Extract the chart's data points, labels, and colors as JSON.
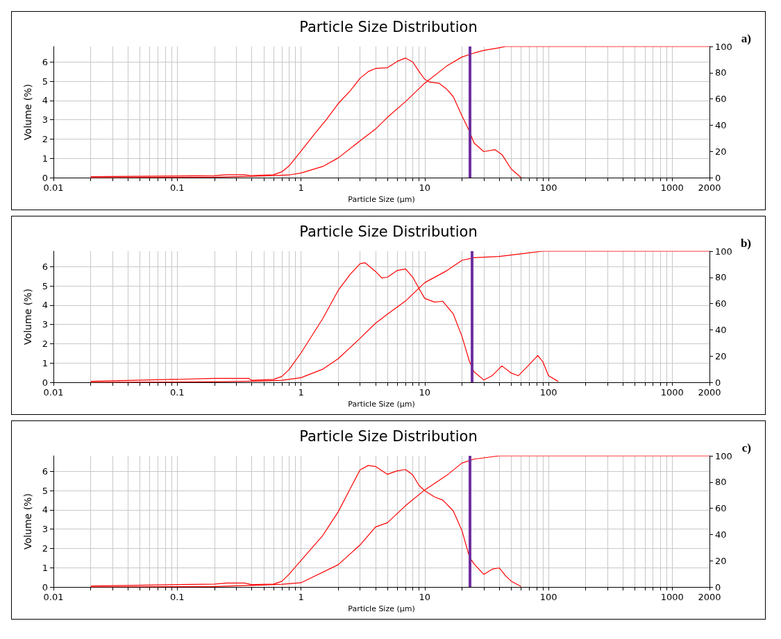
{
  "chart_data": [
    {
      "type": "line",
      "title": "Particle Size Distribution",
      "xlabel": "Particle Size (μm)",
      "ylabel": "Volume (%)",
      "annotations": [
        "a)"
      ],
      "log": "x",
      "grid": true,
      "xlim": [
        0.01,
        2000
      ],
      "xticks": [
        0.01,
        {
          "value": 0.02,
          "label": null
        },
        {
          "value": 0.03,
          "label": null
        },
        {
          "value": 0.04,
          "label": null
        },
        {
          "value": 0.05,
          "label": null
        },
        {
          "value": 0.06,
          "label": null
        },
        {
          "value": 0.07,
          "label": null
        },
        {
          "value": 0.08,
          "label": null
        },
        {
          "value": 0.09,
          "label": null
        },
        0.1,
        {
          "value": 0.2,
          "label": null
        },
        {
          "value": 0.3,
          "label": null
        },
        {
          "value": 0.4,
          "label": null
        },
        {
          "value": 0.5,
          "label": null
        },
        {
          "value": 0.6,
          "label": null
        },
        {
          "value": 0.7,
          "label": null
        },
        {
          "value": 0.8,
          "label": null
        },
        {
          "value": 0.9,
          "label": null
        },
        1,
        {
          "value": 2,
          "label": null
        },
        {
          "value": 3,
          "label": null
        },
        {
          "value": 4,
          "label": null
        },
        {
          "value": 5,
          "label": null
        },
        {
          "value": 6,
          "label": null
        },
        {
          "value": 7,
          "label": null
        },
        {
          "value": 8,
          "label": null
        },
        {
          "value": 9,
          "label": null
        },
        10,
        {
          "value": 20,
          "label": null
        },
        {
          "value": 30,
          "label": null
        },
        {
          "value": 40,
          "label": null
        },
        {
          "value": 50,
          "label": null
        },
        {
          "value": 60,
          "label": null
        },
        {
          "value": 70,
          "label": null
        },
        {
          "value": 80,
          "label": null
        },
        {
          "value": 90,
          "label": null
        },
        100,
        {
          "value": 200,
          "label": null
        },
        {
          "value": 300,
          "label": null
        },
        {
          "value": 400,
          "label": null
        },
        {
          "value": 500,
          "label": null
        },
        {
          "value": 600,
          "label": null
        },
        {
          "value": 700,
          "label": null
        },
        {
          "value": 800,
          "label": null
        },
        {
          "value": 900,
          "label": null
        },
        1000,
        2000
      ],
      "ylim": [
        0,
        6.8
      ],
      "yticks": [
        0,
        1,
        2,
        3,
        4,
        5,
        6
      ],
      "y2lim": [
        0,
        100
      ],
      "y2ticks": [
        0,
        20,
        40,
        60,
        80,
        100
      ],
      "ref_lines": [
        {
          "axis": "x",
          "value": 23,
          "color": "#7030a0"
        }
      ],
      "series": [
        {
          "color": "#ff0000",
          "x": [
            0.02,
            0.2,
            0.25,
            0.35,
            0.4,
            0.6,
            0.7,
            0.8,
            1,
            1.3,
            1.6,
            2,
            2.5,
            3,
            3.5,
            4,
            5,
            6,
            7,
            8,
            9,
            10,
            11,
            13,
            15,
            17,
            20,
            23,
            25,
            30,
            37,
            42,
            50,
            60
          ],
          "values": [
            0.05,
            0.1,
            0.15,
            0.15,
            0.1,
            0.15,
            0.3,
            0.6,
            1.37,
            2.3,
            3,
            3.84,
            4.5,
            5.15,
            5.5,
            5.66,
            5.7,
            6.03,
            6.2,
            6,
            5.5,
            5.1,
            4.95,
            4.9,
            4.6,
            4.2,
            3.2,
            2.4,
            1.8,
            1.35,
            1.45,
            1.2,
            0.45,
            0
          ]
        },
        {
          "color": "#ff0000",
          "axis": "y2",
          "x": [
            0.02,
            0.2,
            0.4,
            0.6,
            0.8,
            1,
            1.5,
            2,
            3,
            4,
            5,
            7,
            10,
            15,
            20,
            25,
            30,
            40,
            45,
            2000
          ],
          "values": [
            0,
            0.3,
            1,
            1.5,
            2,
            3.5,
            8.5,
            15,
            28,
            37,
            46,
            58,
            72,
            85,
            92,
            95,
            97,
            99,
            100,
            100
          ]
        }
      ]
    },
    {
      "type": "line",
      "title": "Particle Size Distribution",
      "xlabel": "Particle Size (μm)",
      "ylabel": "Volume (%)",
      "annotations": [
        "b)"
      ],
      "log": "x",
      "grid": true,
      "xlim": [
        0.01,
        2000
      ],
      "xticks": [
        0.01,
        {
          "value": 0.02,
          "label": null
        },
        {
          "value": 0.03,
          "label": null
        },
        {
          "value": 0.04,
          "label": null
        },
        {
          "value": 0.05,
          "label": null
        },
        {
          "value": 0.06,
          "label": null
        },
        {
          "value": 0.07,
          "label": null
        },
        {
          "value": 0.08,
          "label": null
        },
        {
          "value": 0.09,
          "label": null
        },
        0.1,
        {
          "value": 0.2,
          "label": null
        },
        {
          "value": 0.3,
          "label": null
        },
        {
          "value": 0.4,
          "label": null
        },
        {
          "value": 0.5,
          "label": null
        },
        {
          "value": 0.6,
          "label": null
        },
        {
          "value": 0.7,
          "label": null
        },
        {
          "value": 0.8,
          "label": null
        },
        {
          "value": 0.9,
          "label": null
        },
        1,
        {
          "value": 2,
          "label": null
        },
        {
          "value": 3,
          "label": null
        },
        {
          "value": 4,
          "label": null
        },
        {
          "value": 5,
          "label": null
        },
        {
          "value": 6,
          "label": null
        },
        {
          "value": 7,
          "label": null
        },
        {
          "value": 8,
          "label": null
        },
        {
          "value": 9,
          "label": null
        },
        10,
        {
          "value": 20,
          "label": null
        },
        {
          "value": 30,
          "label": null
        },
        {
          "value": 40,
          "label": null
        },
        {
          "value": 50,
          "label": null
        },
        {
          "value": 60,
          "label": null
        },
        {
          "value": 70,
          "label": null
        },
        {
          "value": 80,
          "label": null
        },
        {
          "value": 90,
          "label": null
        },
        100,
        {
          "value": 200,
          "label": null
        },
        {
          "value": 300,
          "label": null
        },
        {
          "value": 400,
          "label": null
        },
        {
          "value": 500,
          "label": null
        },
        {
          "value": 600,
          "label": null
        },
        {
          "value": 700,
          "label": null
        },
        {
          "value": 800,
          "label": null
        },
        {
          "value": 900,
          "label": null
        },
        1000,
        2000
      ],
      "ylim": [
        0,
        6.8
      ],
      "yticks": [
        0,
        1,
        2,
        3,
        4,
        5,
        6
      ],
      "y2lim": [
        0,
        100
      ],
      "y2ticks": [
        0,
        20,
        40,
        60,
        80,
        100
      ],
      "ref_lines": [
        {
          "axis": "x",
          "value": 24,
          "color": "#7030a0"
        }
      ],
      "series": [
        {
          "color": "#ff0000",
          "x": [
            0.02,
            0.2,
            0.38,
            0.4,
            0.6,
            0.7,
            0.8,
            1,
            1.5,
            2,
            2.5,
            3,
            3.3,
            4,
            4.5,
            5,
            6,
            7,
            8,
            9,
            10,
            12,
            14,
            17,
            20,
            23,
            25,
            30,
            35,
            42,
            50,
            57,
            70,
            82,
            90,
            100,
            120
          ],
          "values": [
            0.05,
            0.2,
            0.2,
            0.1,
            0.15,
            0.3,
            0.65,
            1.52,
            3.3,
            4.77,
            5.6,
            6.15,
            6.2,
            5.75,
            5.41,
            5.45,
            5.8,
            5.88,
            5.45,
            4.86,
            4.35,
            4.16,
            4.2,
            3.55,
            2.38,
            1.07,
            0.55,
            0.12,
            0.34,
            0.85,
            0.48,
            0.34,
            0.92,
            1.39,
            1.07,
            0.34,
            0.04
          ]
        },
        {
          "color": "#ff0000",
          "axis": "y2",
          "x": [
            0.02,
            0.2,
            0.5,
            0.7,
            1,
            1.5,
            2,
            3,
            4,
            5,
            7,
            10,
            15,
            20,
            25,
            40,
            60,
            90,
            2000
          ],
          "values": [
            0,
            0.3,
            1,
            1.5,
            3.5,
            10,
            18,
            33.5,
            45,
            52,
            62,
            76,
            85,
            93,
            95,
            96,
            98,
            100,
            100
          ]
        }
      ]
    },
    {
      "type": "line",
      "title": "Particle Size Distribution",
      "xlabel": "Particle Size (μm)",
      "ylabel": "Volume (%)",
      "annotations": [
        "c)"
      ],
      "log": "x",
      "grid": true,
      "xlim": [
        0.01,
        2000
      ],
      "xticks": [
        0.01,
        {
          "value": 0.02,
          "label": null
        },
        {
          "value": 0.03,
          "label": null
        },
        {
          "value": 0.04,
          "label": null
        },
        {
          "value": 0.05,
          "label": null
        },
        {
          "value": 0.06,
          "label": null
        },
        {
          "value": 0.07,
          "label": null
        },
        {
          "value": 0.08,
          "label": null
        },
        {
          "value": 0.09,
          "label": null
        },
        0.1,
        {
          "value": 0.2,
          "label": null
        },
        {
          "value": 0.3,
          "label": null
        },
        {
          "value": 0.4,
          "label": null
        },
        {
          "value": 0.5,
          "label": null
        },
        {
          "value": 0.6,
          "label": null
        },
        {
          "value": 0.7,
          "label": null
        },
        {
          "value": 0.8,
          "label": null
        },
        {
          "value": 0.9,
          "label": null
        },
        1,
        {
          "value": 2,
          "label": null
        },
        {
          "value": 3,
          "label": null
        },
        {
          "value": 4,
          "label": null
        },
        {
          "value": 5,
          "label": null
        },
        {
          "value": 6,
          "label": null
        },
        {
          "value": 7,
          "label": null
        },
        {
          "value": 8,
          "label": null
        },
        {
          "value": 9,
          "label": null
        },
        10,
        {
          "value": 20,
          "label": null
        },
        {
          "value": 30,
          "label": null
        },
        {
          "value": 40,
          "label": null
        },
        {
          "value": 50,
          "label": null
        },
        {
          "value": 60,
          "label": null
        },
        {
          "value": 70,
          "label": null
        },
        {
          "value": 80,
          "label": null
        },
        {
          "value": 90,
          "label": null
        },
        100,
        {
          "value": 200,
          "label": null
        },
        {
          "value": 300,
          "label": null
        },
        {
          "value": 400,
          "label": null
        },
        {
          "value": 500,
          "label": null
        },
        {
          "value": 600,
          "label": null
        },
        {
          "value": 700,
          "label": null
        },
        {
          "value": 800,
          "label": null
        },
        {
          "value": 900,
          "label": null
        },
        1000,
        2000
      ],
      "ylim": [
        0,
        6.8
      ],
      "yticks": [
        0,
        1,
        2,
        3,
        4,
        5,
        6
      ],
      "y2lim": [
        0,
        100
      ],
      "y2ticks": [
        0,
        20,
        40,
        60,
        80,
        100
      ],
      "ref_lines": [
        {
          "axis": "x",
          "value": 23,
          "color": "#7030a0"
        }
      ],
      "series": [
        {
          "color": "#ff0000",
          "x": [
            0.02,
            0.2,
            0.25,
            0.35,
            0.4,
            0.6,
            0.7,
            0.8,
            1,
            1.5,
            2,
            3,
            3.5,
            4,
            5,
            6,
            7,
            8,
            9,
            10,
            12,
            14,
            17,
            20,
            23,
            25,
            30,
            35,
            40,
            45,
            50,
            60
          ],
          "values": [
            0.05,
            0.15,
            0.2,
            0.2,
            0.12,
            0.15,
            0.29,
            0.65,
            1.37,
            2.67,
            3.9,
            6.07,
            6.3,
            6.25,
            5.84,
            6.02,
            6.09,
            5.81,
            5.26,
            4.99,
            4.67,
            4.5,
            3.95,
            2.92,
            1.54,
            1.2,
            0.65,
            0.92,
            0.99,
            0.58,
            0.3,
            0.03
          ]
        },
        {
          "color": "#ff0000",
          "axis": "y2",
          "x": [
            0.02,
            0.2,
            0.5,
            0.7,
            1,
            2,
            3,
            4,
            5,
            7,
            10,
            15,
            20,
            25,
            40,
            2000
          ],
          "values": [
            0,
            0.3,
            1.5,
            2,
            3.2,
            17,
            32,
            45.7,
            49,
            62,
            74,
            85,
            94.5,
            97.5,
            100,
            100
          ]
        }
      ]
    }
  ]
}
